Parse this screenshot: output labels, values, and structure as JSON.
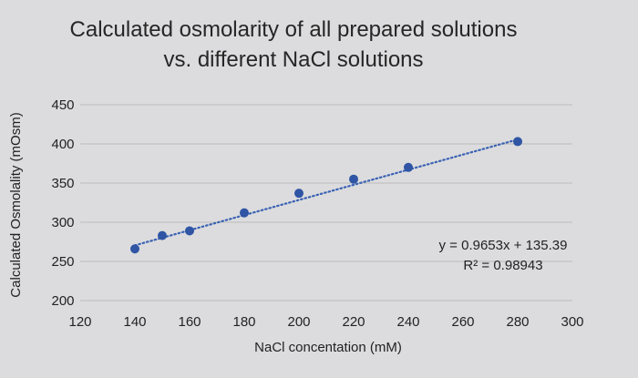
{
  "chart_data": {
    "type": "scatter",
    "title_lines": [
      "Calculated osmolarity of all prepared solutions",
      "vs. different NaCl solutions"
    ],
    "xlabel": "NaCl concentation (mM)",
    "ylabel": "Calculated Osmolality (mOsm)",
    "xlim": [
      120,
      300
    ],
    "ylim": [
      200,
      450
    ],
    "x_ticks": [
      120,
      140,
      160,
      180,
      200,
      220,
      240,
      260,
      280,
      300
    ],
    "y_ticks": [
      200,
      250,
      300,
      350,
      400,
      450
    ],
    "grid": "horizontal",
    "series": [
      {
        "x": [
          140,
          150,
          160,
          180,
          200,
          220,
          240,
          280
        ],
        "y": [
          266,
          283,
          289,
          312,
          337,
          355,
          370,
          403
        ]
      }
    ],
    "trendline": {
      "type": "linear",
      "slope": 0.9653,
      "intercept": 135.39,
      "x_range": [
        140,
        280
      ],
      "equation": "y = 0.9653x + 135.39",
      "r_squared": "R² = 0.98943"
    },
    "colors": {
      "marker": "#2f55a4",
      "trendline": "#3a62b3",
      "grid": "#bcbcbc",
      "background": "#dcdcde"
    }
  }
}
